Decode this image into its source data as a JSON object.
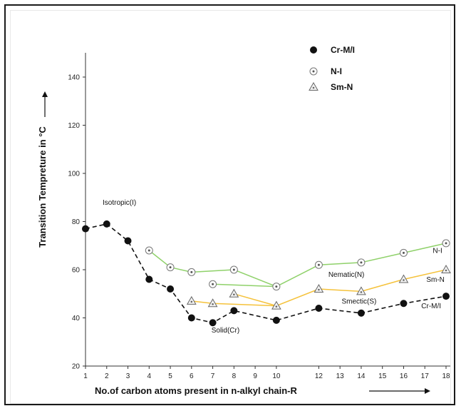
{
  "chart_data": {
    "type": "line",
    "xlabel": "No.of carbon atoms present  in n-alkyl chain-R",
    "ylabel": "Transition Tempreture in °C",
    "xlim": [
      1,
      18
    ],
    "ylim": [
      20,
      150
    ],
    "x_ticks": [
      1,
      2,
      3,
      4,
      5,
      6,
      7,
      8,
      9,
      10,
      12,
      13,
      14,
      15,
      16,
      17,
      18
    ],
    "y_ticks": [
      20,
      40,
      60,
      80,
      100,
      120,
      140
    ],
    "grid": false,
    "legend_position": "top-right",
    "series": [
      {
        "name": "Cr-M/I",
        "marker": "filled-circle",
        "line_color": "#111111",
        "line_style": "dashed",
        "points": [
          {
            "x": 1,
            "y": 77
          },
          {
            "x": 2,
            "y": 79
          },
          {
            "x": 3,
            "y": 72
          },
          {
            "x": 4,
            "y": 56
          },
          {
            "x": 5,
            "y": 52
          },
          {
            "x": 6,
            "y": 40
          },
          {
            "x": 7,
            "y": 38
          },
          {
            "x": 8,
            "y": 43
          },
          {
            "x": 10,
            "y": 39
          },
          {
            "x": 12,
            "y": 44
          },
          {
            "x": 14,
            "y": 42
          },
          {
            "x": 16,
            "y": 46
          },
          {
            "x": 18,
            "y": 49
          }
        ]
      },
      {
        "name": "N-I",
        "marker": "dotted-circle",
        "line_color": "#8fd16a",
        "line_style": "solid",
        "segments": [
          [
            {
              "x": 4,
              "y": 68
            },
            {
              "x": 5,
              "y": 61
            },
            {
              "x": 6,
              "y": 59
            },
            {
              "x": 8,
              "y": 60
            },
            {
              "x": 10,
              "y": 53
            },
            {
              "x": 12,
              "y": 62
            },
            {
              "x": 14,
              "y": 63
            },
            {
              "x": 16,
              "y": 67
            },
            {
              "x": 18,
              "y": 71
            }
          ],
          [
            {
              "x": 7,
              "y": 54
            },
            {
              "x": 10,
              "y": 53
            }
          ]
        ]
      },
      {
        "name": "Sm-N",
        "marker": "triangle",
        "line_color": "#f5c23b",
        "line_style": "solid",
        "segments": [
          [
            {
              "x": 6,
              "y": 47
            },
            {
              "x": 7,
              "y": 46
            },
            {
              "x": 10,
              "y": 45
            },
            {
              "x": 12,
              "y": 52
            },
            {
              "x": 14,
              "y": 51
            },
            {
              "x": 16,
              "y": 56
            },
            {
              "x": 18,
              "y": 60
            }
          ],
          [
            {
              "x": 8,
              "y": 50
            },
            {
              "x": 10,
              "y": 45
            }
          ]
        ]
      }
    ],
    "annotations": [
      {
        "text": "Isotropic(I)",
        "x": 2.6,
        "y": 87
      },
      {
        "text": "N-I",
        "x": 17.6,
        "y": 67
      },
      {
        "text": "Nematic(N)",
        "x": 13.3,
        "y": 57
      },
      {
        "text": "Sm-N",
        "x": 17.5,
        "y": 55
      },
      {
        "text": "Smectic(S)",
        "x": 13.9,
        "y": 46
      },
      {
        "text": "Cr-M/I",
        "x": 17.3,
        "y": 44
      },
      {
        "text": "Solid(Cr)",
        "x": 7.6,
        "y": 34
      }
    ]
  }
}
